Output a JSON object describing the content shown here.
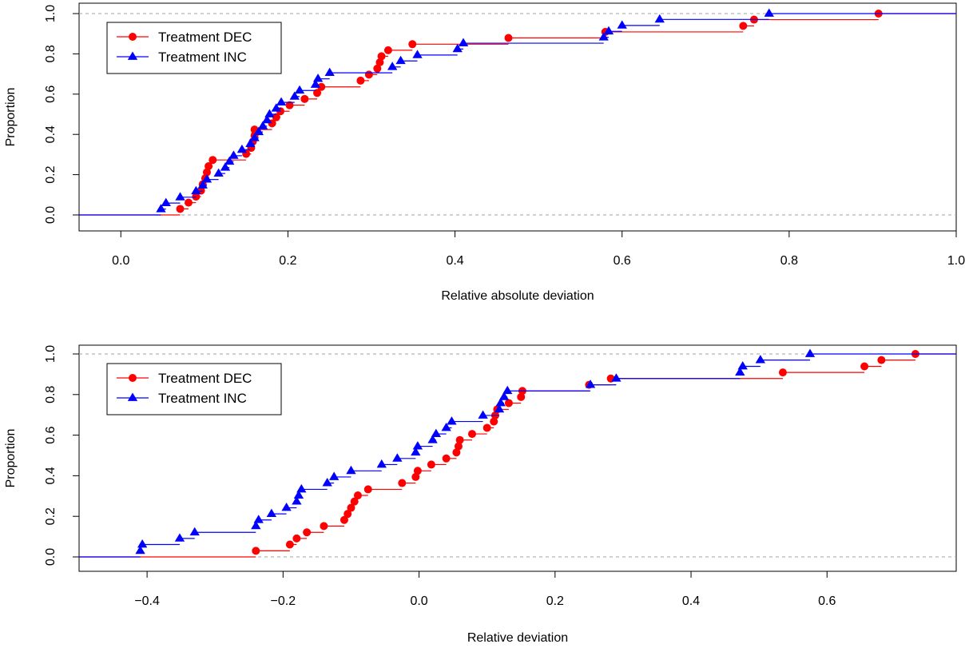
{
  "chart_data": [
    {
      "type": "line",
      "subtype": "empirical-cdf-step",
      "xlabel": "Relative absolute deviation",
      "ylabel": "Proportion",
      "xlim": [
        -0.05,
        1.0
      ],
      "ylim": [
        0,
        1
      ],
      "x_ticks": [
        "0.0",
        "0.2",
        "0.4",
        "0.6",
        "0.8",
        "1.0"
      ],
      "y_ticks": [
        "0.0",
        "0.2",
        "0.4",
        "0.6",
        "0.8",
        "1.0"
      ],
      "reference_lines": [
        0,
        1
      ],
      "legend_position": "top-left",
      "series": [
        {
          "name": "Treatment DEC",
          "color": "#ff0000",
          "marker": "circle",
          "x": [
            0.071,
            0.081,
            0.09,
            0.096,
            0.098,
            0.101,
            0.103,
            0.105,
            0.11,
            0.15,
            0.156,
            0.158,
            0.16,
            0.16,
            0.181,
            0.186,
            0.191,
            0.202,
            0.22,
            0.235,
            0.24,
            0.287,
            0.297,
            0.307,
            0.31,
            0.312,
            0.32,
            0.349,
            0.464,
            0.58,
            0.745,
            0.758,
            0.907
          ],
          "y": [
            0.03,
            0.061,
            0.091,
            0.121,
            0.152,
            0.182,
            0.212,
            0.242,
            0.273,
            0.303,
            0.333,
            0.364,
            0.394,
            0.424,
            0.455,
            0.485,
            0.515,
            0.545,
            0.576,
            0.606,
            0.636,
            0.667,
            0.697,
            0.727,
            0.758,
            0.788,
            0.818,
            0.848,
            0.879,
            0.909,
            0.939,
            0.97,
            1.0
          ]
        },
        {
          "name": "Treatment INC",
          "color": "#0000ff",
          "marker": "triangle",
          "x": [
            0.048,
            0.054,
            0.071,
            0.09,
            0.098,
            0.103,
            0.117,
            0.125,
            0.13,
            0.135,
            0.145,
            0.155,
            0.16,
            0.165,
            0.17,
            0.175,
            0.178,
            0.186,
            0.192,
            0.208,
            0.214,
            0.233,
            0.236,
            0.25,
            0.325,
            0.335,
            0.355,
            0.403,
            0.41,
            0.578,
            0.584,
            0.6,
            0.645,
            0.776
          ],
          "y": [
            0.029,
            0.059,
            0.088,
            0.118,
            0.147,
            0.176,
            0.206,
            0.235,
            0.265,
            0.294,
            0.324,
            0.353,
            0.382,
            0.412,
            0.441,
            0.471,
            0.5,
            0.529,
            0.559,
            0.588,
            0.618,
            0.647,
            0.676,
            0.706,
            0.735,
            0.765,
            0.794,
            0.824,
            0.853,
            0.882,
            0.912,
            0.941,
            0.971,
            1.0
          ]
        }
      ]
    },
    {
      "type": "line",
      "subtype": "empirical-cdf-step",
      "xlabel": "Relative deviation",
      "ylabel": "Proportion",
      "xlim": [
        -0.5,
        0.79
      ],
      "ylim": [
        0,
        1
      ],
      "x_ticks": [
        "−0.4",
        "−0.2",
        "0.0",
        "0.2",
        "0.4",
        "0.6"
      ],
      "x_tick_values": [
        -0.4,
        -0.2,
        0.0,
        0.2,
        0.4,
        0.6
      ],
      "y_ticks": [
        "0.0",
        "0.2",
        "0.4",
        "0.6",
        "0.8",
        "1.0"
      ],
      "reference_lines": [
        0,
        1
      ],
      "legend_position": "top-left",
      "series": [
        {
          "name": "Treatment DEC",
          "color": "#ff0000",
          "marker": "circle",
          "x": [
            -0.24,
            -0.19,
            -0.18,
            -0.165,
            -0.14,
            -0.11,
            -0.105,
            -0.1,
            -0.095,
            -0.09,
            -0.075,
            -0.025,
            -0.005,
            -0.002,
            0.018,
            0.04,
            0.055,
            0.058,
            0.06,
            0.078,
            0.1,
            0.11,
            0.112,
            0.115,
            0.132,
            0.15,
            0.152,
            0.25,
            0.282,
            0.535,
            0.655,
            0.68,
            0.73
          ],
          "y": [
            0.03,
            0.061,
            0.091,
            0.121,
            0.152,
            0.182,
            0.212,
            0.242,
            0.273,
            0.303,
            0.333,
            0.364,
            0.394,
            0.424,
            0.455,
            0.485,
            0.515,
            0.545,
            0.576,
            0.606,
            0.636,
            0.667,
            0.697,
            0.727,
            0.758,
            0.788,
            0.818,
            0.848,
            0.879,
            0.909,
            0.939,
            0.97,
            1.0
          ]
        },
        {
          "name": "Treatment INC",
          "color": "#0000ff",
          "marker": "triangle",
          "x": [
            -0.41,
            -0.407,
            -0.352,
            -0.33,
            -0.24,
            -0.236,
            -0.217,
            -0.195,
            -0.18,
            -0.177,
            -0.173,
            -0.135,
            -0.125,
            -0.1,
            -0.055,
            -0.032,
            -0.005,
            -0.002,
            0.02,
            0.025,
            0.04,
            0.048,
            0.094,
            0.118,
            0.12,
            0.125,
            0.13,
            0.252,
            0.29,
            0.472,
            0.476,
            0.502,
            0.575
          ],
          "y": [
            0.03,
            0.061,
            0.091,
            0.121,
            0.152,
            0.182,
            0.212,
            0.242,
            0.273,
            0.303,
            0.333,
            0.364,
            0.394,
            0.424,
            0.455,
            0.485,
            0.515,
            0.545,
            0.576,
            0.606,
            0.636,
            0.667,
            0.697,
            0.727,
            0.758,
            0.788,
            0.818,
            0.848,
            0.879,
            0.909,
            0.939,
            0.97,
            1.0
          ]
        }
      ]
    }
  ]
}
